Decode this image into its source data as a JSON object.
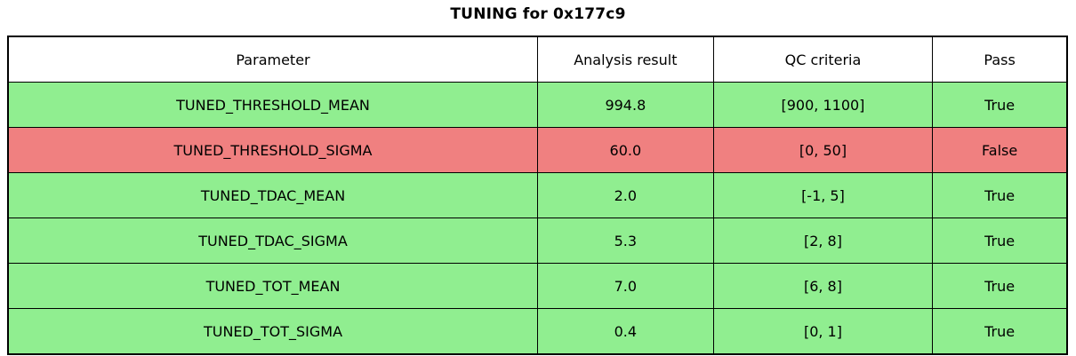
{
  "title": "TUNING for 0x177c9",
  "colors": {
    "pass_green": "#90EE90",
    "fail_red": "#F08080",
    "header_bg": "#FFFFFF",
    "border": "#000000",
    "text": "#000000"
  },
  "table": {
    "columns": [
      "Parameter",
      "Analysis result",
      "QC criteria",
      "Pass"
    ],
    "rows": [
      {
        "parameter": "TUNED_THRESHOLD_MEAN",
        "result": "994.8",
        "criteria": "[900, 1100]",
        "pass": "True"
      },
      {
        "parameter": "TUNED_THRESHOLD_SIGMA",
        "result": "60.0",
        "criteria": "[0, 50]",
        "pass": "False"
      },
      {
        "parameter": "TUNED_TDAC_MEAN",
        "result": "2.0",
        "criteria": "[-1, 5]",
        "pass": "True"
      },
      {
        "parameter": "TUNED_TDAC_SIGMA",
        "result": "5.3",
        "criteria": "[2, 8]",
        "pass": "True"
      },
      {
        "parameter": "TUNED_TOT_MEAN",
        "result": "7.0",
        "criteria": "[6, 8]",
        "pass": "True"
      },
      {
        "parameter": "TUNED_TOT_SIGMA",
        "result": "0.4",
        "criteria": "[0, 1]",
        "pass": "True"
      }
    ]
  },
  "chart_data": {
    "type": "table",
    "title": "TUNING for 0x177c9",
    "columns": [
      "Parameter",
      "Analysis result",
      "QC criteria",
      "Pass"
    ],
    "rows": [
      [
        "TUNED_THRESHOLD_MEAN",
        994.8,
        "[900, 1100]",
        true
      ],
      [
        "TUNED_THRESHOLD_SIGMA",
        60.0,
        "[0, 50]",
        false
      ],
      [
        "TUNED_TDAC_MEAN",
        2.0,
        "[-1, 5]",
        true
      ],
      [
        "TUNED_TDAC_SIGMA",
        5.3,
        "[2, 8]",
        true
      ],
      [
        "TUNED_TOT_MEAN",
        7.0,
        "[6, 8]",
        true
      ],
      [
        "TUNED_TOT_SIGMA",
        0.4,
        "[0, 1]",
        true
      ]
    ],
    "row_colors": [
      "#90EE90",
      "#F08080",
      "#90EE90",
      "#90EE90",
      "#90EE90",
      "#90EE90"
    ],
    "header_color": "#FFFFFF",
    "layout": {
      "grid": true,
      "legend": "none"
    }
  }
}
